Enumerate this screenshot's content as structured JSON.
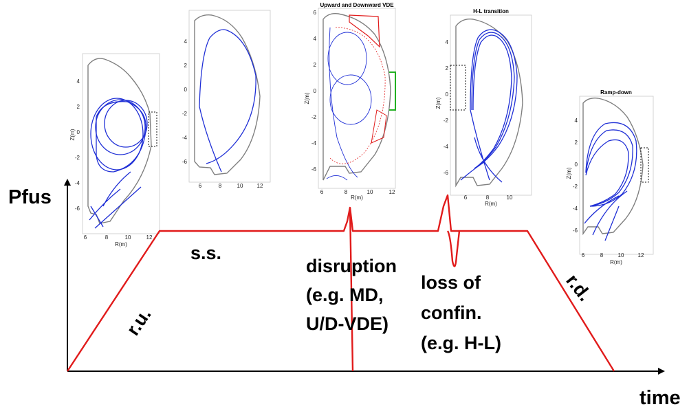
{
  "axes": {
    "y_title": "Pfus",
    "x_title": "time"
  },
  "phases": {
    "ramp_up": "r.u.",
    "steady_state": "s.s.",
    "disruption": [
      "disruption",
      "(e.g. MD,",
      "U/D-VDE)"
    ],
    "loss_of_confinement": [
      "loss of",
      "confin.",
      "(e.g. H-L)"
    ],
    "ramp_down": "r.d."
  },
  "panels": {
    "p1": {
      "title": "",
      "xlabel": "R(m)",
      "ylabel": "Z(m)",
      "xticks": [
        "6",
        "8",
        "10",
        "12"
      ],
      "yticks": [
        "4",
        "2",
        "0",
        "-2",
        "-4",
        "-6"
      ]
    },
    "p2": {
      "title": "",
      "xlabel": "",
      "ylabel": "",
      "xticks": [
        "6",
        "8",
        "10",
        "12"
      ],
      "yticks": [
        "4",
        "2",
        "0",
        "-2",
        "-4",
        "-6"
      ]
    },
    "p3": {
      "title": "Upward and Downward VDE",
      "xlabel": "R(m)",
      "ylabel": "Z(m)",
      "xticks": [
        "6",
        "8",
        "10",
        "12"
      ],
      "yticks": [
        "6",
        "4",
        "2",
        "0",
        "-2",
        "-4",
        "-6"
      ]
    },
    "p4": {
      "title": "H-L transition",
      "xlabel": "R(m)",
      "ylabel": "Z(m)",
      "xticks": [
        "6",
        "8",
        "10"
      ],
      "yticks": [
        "4",
        "2",
        "0",
        "-2",
        "-4",
        "-6"
      ]
    },
    "p5": {
      "title": "Ramp-down",
      "xlabel": "R(m)",
      "ylabel": "Z(m)",
      "xticks": [
        "6",
        "8",
        "10",
        "12"
      ],
      "yticks": [
        "4",
        "2",
        "0",
        "-2",
        "-4",
        "-6"
      ]
    }
  },
  "colors": {
    "pulse": "#e11b1b",
    "plasma": "#1f2fd6",
    "wall": "#7f7f7f",
    "vde_box": "#e11b1b",
    "vde_port": "#22b022"
  }
}
